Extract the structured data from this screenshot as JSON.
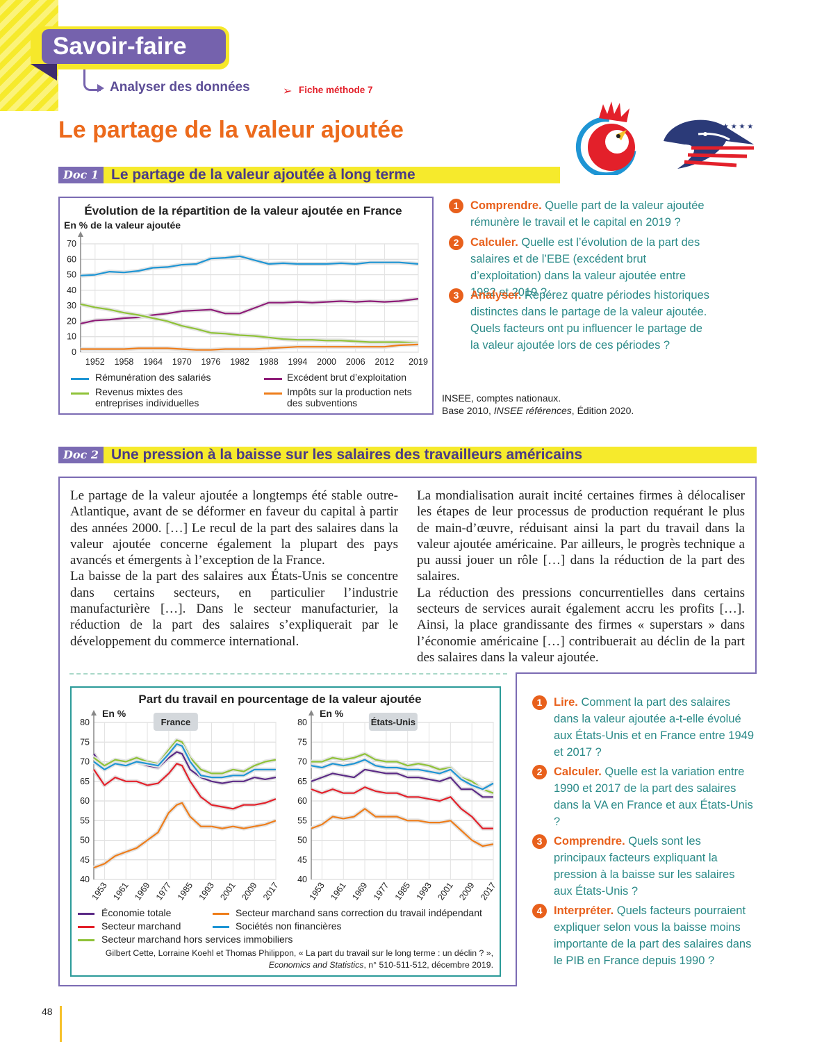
{
  "header": {
    "section_label": "Savoir-faire",
    "subsection_label": "Analyser des données",
    "method_link": "Fiche méthode 7",
    "page_title": "Le partage de la valeur ajoutée"
  },
  "doc1": {
    "tag": "Doc 1",
    "title": "Le partage de la valeur ajoutée à long terme",
    "source_line1": "INSEE, comptes nationaux.",
    "source_line2_a": "Base 2010, ",
    "source_line2_b": "INSEE références",
    "source_line2_c": ", Édition 2020.",
    "questions": [
      {
        "num": "1",
        "keyword": "Comprendre.",
        "text": " Quelle part de la valeur ajoutée rémunère le travail et le capital en 2019 ?"
      },
      {
        "num": "2",
        "keyword": "Calculer.",
        "text": " Quelle est l’évolution de la part des salaires et de l’EBE (excédent brut d’exploitation) dans la valeur ajoutée entre 1982 et 2019 ?"
      },
      {
        "num": "3",
        "keyword": "Analyser.",
        "text": " Repérez quatre périodes historiques distinctes dans le partage de la valeur ajoutée. Quels facteurs ont pu influencer le partage de la valeur ajoutée lors de ces périodes ?"
      }
    ]
  },
  "doc2": {
    "tag": "Doc 2",
    "title": "Une pression à la baisse sur les salaires des travailleurs américains",
    "text_col1_p1": "Le partage de la valeur ajoutée a longtemps été stable outre-Atlantique, avant de se déformer en faveur du capital à partir des années 2000. […] Le recul de la part des salaires dans la valeur ajoutée concerne également la plupart des pays avancés et émergents à l’exception de la France.",
    "text_col1_p2": "La baisse de la part des salaires aux États-Unis se concentre dans certains secteurs, en particulier l’industrie manufacturière […]. Dans le secteur manufacturier, la réduction de la part des salaires s’expliquerait par le développement du commerce international.",
    "text_col2_p1": "La mondialisation aurait incité certaines firmes à délocaliser les étapes de leur processus de production requérant le plus de main-d’œuvre, réduisant ainsi la part du travail dans la valeur ajoutée américaine. Par ailleurs, le progrès technique a pu aussi jouer un rôle […] dans la réduction de la part des salaires.",
    "text_col2_p2": "La réduction des pressions concurrentielles dans certains secteurs de services aurait également accru les profits […]. Ainsi, la place grandissante des firmes « superstars » dans l’économie américaine […] contribuerait au déclin de la part des salaires dans la valeur ajoutée.",
    "source_line1": "Gilbert Cette, Lorraine Koehl et Thomas Philippon, « La part du travail sur le long terme : un déclin ? »,",
    "source_line2_a": "Economics and Statistics",
    "source_line2_b": ", n° 510-511-512, décembre 2019.",
    "questions": [
      {
        "num": "1",
        "keyword": "Lire.",
        "text": " Comment la part des salaires dans la valeur ajoutée a-t-elle évolué aux États-Unis et en France entre 1949 et 2017 ?"
      },
      {
        "num": "2",
        "keyword": "Calculer.",
        "text": " Quelle est la variation entre 1990 et 2017 de la part des salaires dans la VA en France et aux États-Unis ?"
      },
      {
        "num": "3",
        "keyword": "Comprendre.",
        "text": " Quels sont les principaux facteurs expliquant la pression à la baisse sur les salaires aux États-Unis ?"
      },
      {
        "num": "4",
        "keyword": "Interpréter.",
        "text": " Quels facteurs pourraient expliquer selon vous la baisse moins importante de la part des salaires dans le PIB en France depuis 1990 ?"
      }
    ]
  },
  "page_number": "48",
  "chart_data": [
    {
      "type": "line",
      "title": "Évolution de la répartition de la valeur ajoutée en France",
      "ylabel": "En % de la valeur ajoutée",
      "xlabel": "",
      "ylim": [
        0,
        70
      ],
      "xlim": [
        1949,
        2019
      ],
      "yticks": [
        0,
        10,
        20,
        30,
        40,
        50,
        60,
        70
      ],
      "xticks": [
        1952,
        1958,
        1964,
        1970,
        1976,
        1982,
        1988,
        1994,
        2000,
        2006,
        2012,
        2019
      ],
      "grid": true,
      "legend_position": "bottom",
      "x": [
        1949,
        1952,
        1955,
        1958,
        1961,
        1964,
        1967,
        1970,
        1973,
        1976,
        1979,
        1982,
        1985,
        1988,
        1991,
        1994,
        1997,
        2000,
        2003,
        2006,
        2009,
        2012,
        2015,
        2019
      ],
      "series": [
        {
          "name": "Rémunération des salariés",
          "color": "#1e95d4",
          "values": [
            49.5,
            50,
            52,
            51.5,
            52.5,
            54.5,
            55,
            56.5,
            57,
            60.5,
            61,
            62,
            59.5,
            57,
            57.5,
            57,
            57,
            57,
            57.5,
            57,
            58,
            58,
            58,
            57
          ]
        },
        {
          "name": "Excédent brut d’exploitation",
          "color": "#8e1c78",
          "values": [
            18.5,
            20.5,
            21,
            22,
            22.5,
            24,
            25,
            26.5,
            27,
            27.5,
            25,
            25,
            28.5,
            32,
            32,
            32.5,
            32,
            32.5,
            33,
            32.5,
            33,
            32.5,
            33,
            34.5
          ]
        },
        {
          "name": "Revenus mixtes des entreprises individuelles",
          "color": "#8fc238",
          "values": [
            31,
            29,
            27.5,
            25.5,
            24,
            22,
            20,
            17,
            15,
            12.5,
            12,
            11,
            10.5,
            9.5,
            8.5,
            8,
            8,
            7.5,
            7.5,
            7,
            6.5,
            6.5,
            6.5,
            6
          ]
        },
        {
          "name": "Impôts sur la production nets des subventions",
          "color": "#ee7d1a",
          "values": [
            2,
            2,
            2,
            2,
            2.5,
            2.5,
            2.5,
            2,
            1.5,
            1.5,
            2,
            2,
            2,
            2.5,
            3,
            3.5,
            3.5,
            3.5,
            3.5,
            3.5,
            3.5,
            3.5,
            4.5,
            5
          ]
        }
      ]
    },
    {
      "type": "line",
      "title": "Part du travail en pourcentage de la valeur ajoutée",
      "panel": "France",
      "ylabel": "En %",
      "ylim": [
        40,
        80
      ],
      "xlim": [
        1949,
        2017
      ],
      "yticks": [
        40,
        45,
        50,
        55,
        60,
        65,
        70,
        75,
        80
      ],
      "xticks": [
        1953,
        1961,
        1969,
        1977,
        1985,
        1993,
        2001,
        2009,
        2017
      ],
      "legend_position": "bottom",
      "x": [
        1949,
        1953,
        1957,
        1961,
        1965,
        1969,
        1973,
        1977,
        1980,
        1982,
        1985,
        1989,
        1993,
        1997,
        2001,
        2005,
        2009,
        2013,
        2017
      ],
      "series": [
        {
          "name": "Économie totale",
          "color": "#5b2a86",
          "values": [
            72,
            68,
            70,
            69,
            70,
            69,
            68.5,
            71,
            72.5,
            72,
            68,
            66,
            65,
            64.5,
            65,
            65,
            66,
            65.5,
            66
          ]
        },
        {
          "name": "Secteur marchand",
          "color": "#e3202a",
          "values": [
            68,
            64,
            66,
            65,
            65,
            64,
            64.5,
            67,
            69.5,
            69,
            65,
            61,
            59,
            58.5,
            58,
            59,
            59,
            59.5,
            60.5
          ]
        },
        {
          "name": "Secteur marchand hors services immobiliers",
          "color": "#8fc238",
          "values": [
            71,
            69,
            70.5,
            70,
            71,
            70,
            69.5,
            73,
            75.5,
            75,
            71,
            68,
            67,
            67,
            68,
            67.5,
            69,
            70,
            70.5
          ]
        },
        {
          "name": "Secteur marchand sans correction du travail indépendant",
          "color": "#ee7d1a",
          "values": [
            43,
            44,
            46,
            47,
            48,
            50,
            52,
            57,
            59,
            59.5,
            56,
            53.5,
            53.5,
            53,
            53.5,
            53,
            53.5,
            54,
            55
          ]
        },
        {
          "name": "Sociétés non financières",
          "color": "#1e95d4",
          "values": [
            70,
            68,
            69.5,
            69,
            70,
            69.5,
            69,
            72,
            74.5,
            74,
            70,
            66.5,
            66,
            66,
            66.5,
            66.5,
            68,
            68,
            68
          ]
        }
      ]
    },
    {
      "type": "line",
      "title": "Part du travail en pourcentage de la valeur ajoutée",
      "panel": "États-Unis",
      "ylabel": "En %",
      "ylim": [
        40,
        80
      ],
      "xlim": [
        1949,
        2017
      ],
      "yticks": [
        40,
        45,
        50,
        55,
        60,
        65,
        70,
        75,
        80
      ],
      "xticks": [
        1953,
        1961,
        1969,
        1977,
        1985,
        1993,
        2001,
        2009,
        2017
      ],
      "legend_position": "bottom",
      "x": [
        1949,
        1953,
        1957,
        1961,
        1965,
        1969,
        1973,
        1977,
        1981,
        1985,
        1989,
        1993,
        1997,
        2001,
        2005,
        2009,
        2013,
        2017
      ],
      "series": [
        {
          "name": "Économie totale",
          "color": "#5b2a86",
          "values": [
            65,
            66,
            67,
            66.5,
            66,
            68,
            67.5,
            67,
            67,
            66,
            66,
            65.5,
            65,
            66,
            63,
            63,
            61,
            61
          ]
        },
        {
          "name": "Secteur marchand",
          "color": "#e3202a",
          "values": [
            63,
            62,
            63,
            62,
            62,
            63.5,
            62.5,
            62,
            62,
            61,
            61,
            60.5,
            60,
            61,
            58,
            56,
            53,
            53
          ]
        },
        {
          "name": "Secteur marchand hors services immobiliers",
          "color": "#8fc238",
          "values": [
            70,
            70,
            71,
            70.5,
            71,
            72,
            70.5,
            70,
            70,
            69,
            69.5,
            69,
            68,
            68.5,
            66,
            65,
            63,
            62
          ]
        },
        {
          "name": "Secteur marchand sans correction du travail indépendant",
          "color": "#ee7d1a",
          "values": [
            53,
            54,
            56,
            55.5,
            56,
            58,
            56,
            56,
            56,
            55,
            55,
            54.5,
            54.5,
            55,
            52.5,
            50,
            48.5,
            49
          ]
        },
        {
          "name": "Sociétés non financières",
          "color": "#1e95d4",
          "values": [
            69,
            68.5,
            69.5,
            69,
            69.5,
            70.5,
            69,
            68.5,
            68.5,
            68,
            68,
            67.5,
            67,
            68,
            65.5,
            64,
            63,
            64.5
          ]
        }
      ]
    }
  ]
}
